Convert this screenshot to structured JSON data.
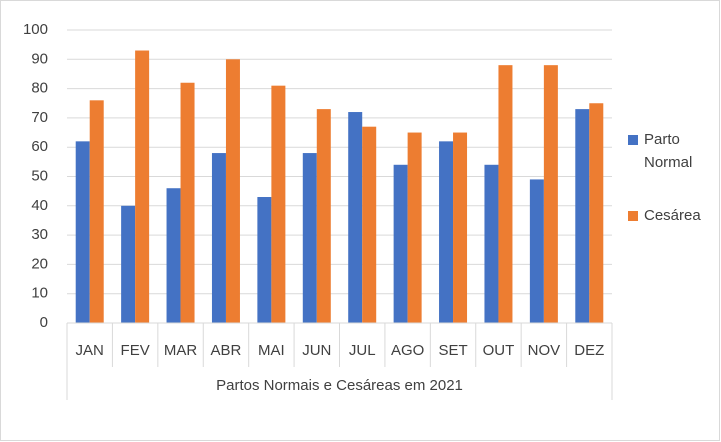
{
  "chart_data": {
    "type": "bar",
    "x_label": "Partos Normais e Cesáreas em 2021",
    "categories": [
      "JAN",
      "FEV",
      "MAR",
      "ABR",
      "MAI",
      "JUN",
      "JUL",
      "AGO",
      "SET",
      "OUT",
      "NOV",
      "DEZ"
    ],
    "series": [
      {
        "name": "Parto Normal",
        "color": "#4472c4",
        "values": [
          62,
          40,
          46,
          58,
          43,
          58,
          72,
          54,
          62,
          54,
          49,
          73
        ]
      },
      {
        "name": "Cesárea",
        "color": "#ed7d31",
        "values": [
          76,
          93,
          82,
          90,
          81,
          73,
          67,
          65,
          65,
          88,
          88,
          75
        ]
      }
    ],
    "ylim": [
      0,
      100
    ],
    "yticks": [
      0,
      10,
      20,
      30,
      40,
      50,
      60,
      70,
      80,
      90,
      100
    ],
    "grid": true,
    "legend": "right"
  }
}
